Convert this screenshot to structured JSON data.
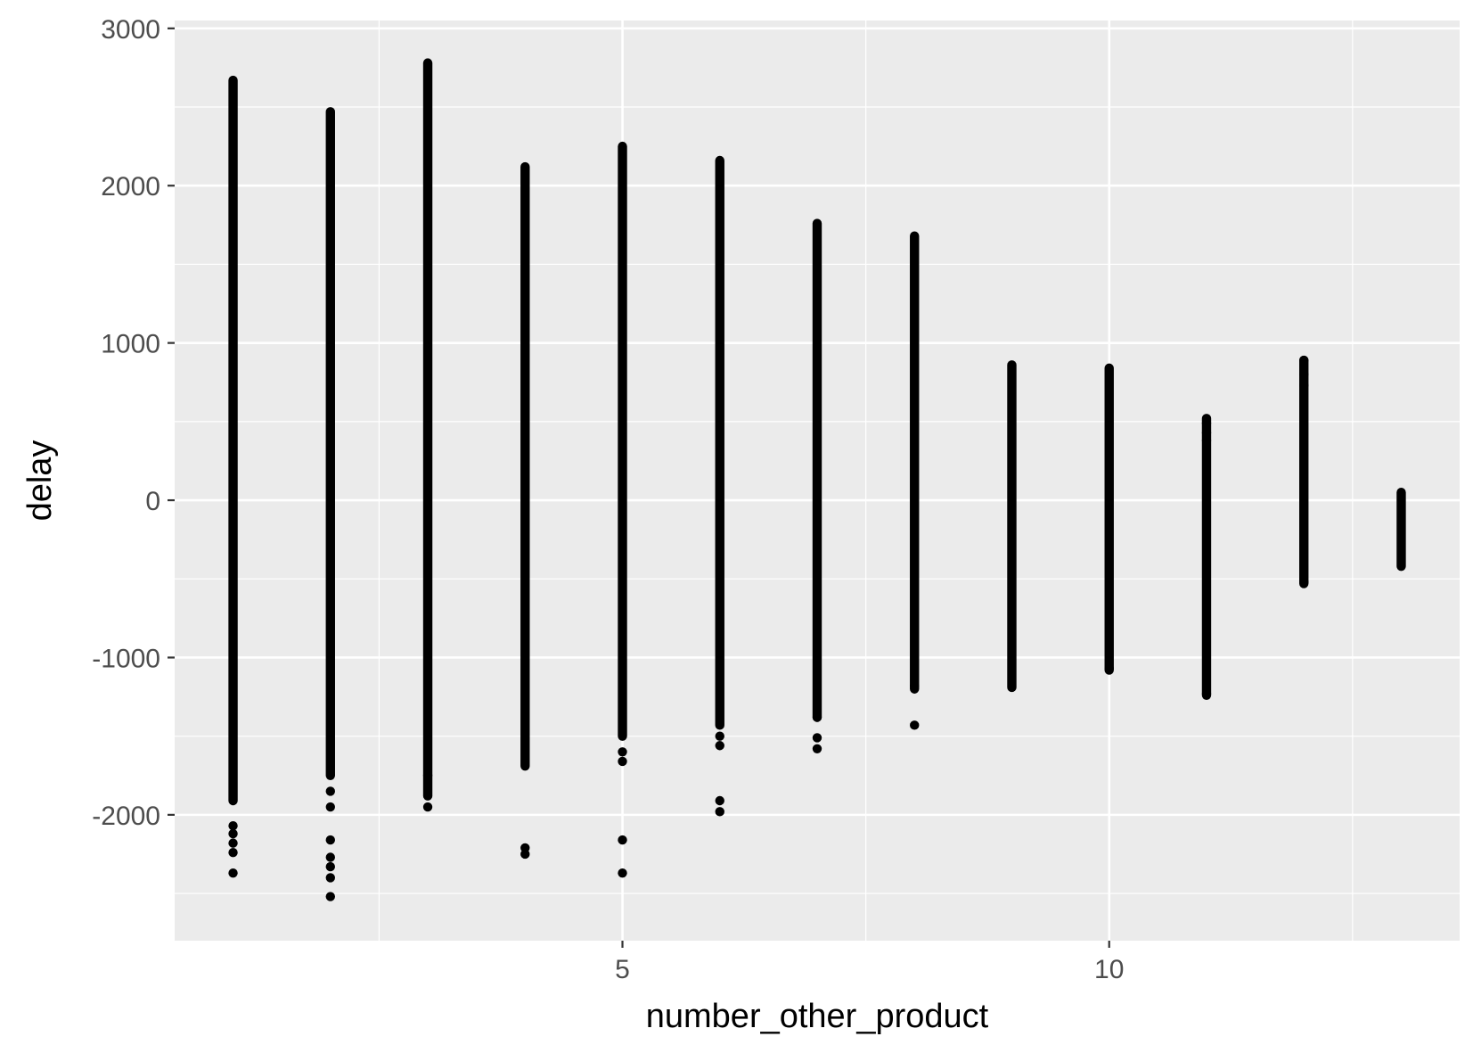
{
  "chart_data": {
    "type": "scatter",
    "xlabel": "number_other_product",
    "ylabel": "delay",
    "xlim": [
      0.4,
      13.6
    ],
    "ylim": [
      -2800,
      3050
    ],
    "x_ticks": [
      5,
      10
    ],
    "x_minor_ticks": [
      2.5,
      7.5,
      12.5
    ],
    "y_ticks": [
      3000,
      2000,
      1000,
      0,
      -1000,
      -2000
    ],
    "y_tick_labels": [
      "3000",
      "2000",
      "1000",
      "0",
      "-1000",
      "-2000"
    ],
    "y_minor_ticks": [
      2500,
      1500,
      500,
      -500,
      -1500,
      -2500
    ],
    "grid": true,
    "legend": "none",
    "colors": {
      "panel": "#ebebeb",
      "grid": "#ffffff",
      "point": "#000000"
    },
    "series": [
      {
        "x": [
          1,
          2,
          3,
          4,
          5,
          6,
          7,
          8,
          9,
          10,
          11,
          12,
          13
        ],
        "dense_min": [
          -1910,
          -1750,
          -1880,
          -1690,
          -1500,
          -1430,
          -1380,
          -1200,
          -1190,
          -1080,
          -1240,
          -530,
          -420
        ],
        "dense_max": [
          2670,
          2470,
          2780,
          2120,
          2250,
          2160,
          1760,
          1680,
          860,
          840,
          520,
          890,
          50
        ],
        "outliers": [
          [
            1,
            -2070
          ],
          [
            1,
            -2120
          ],
          [
            1,
            -2180
          ],
          [
            1,
            -2240
          ],
          [
            1,
            -2370
          ],
          [
            2,
            -1850
          ],
          [
            2,
            -1950
          ],
          [
            2,
            -2160
          ],
          [
            2,
            -2270
          ],
          [
            2,
            -2330
          ],
          [
            2,
            -2400
          ],
          [
            2,
            -2520
          ],
          [
            3,
            -1950
          ],
          [
            3,
            -1750
          ],
          [
            4,
            -2210
          ],
          [
            4,
            -2250
          ],
          [
            5,
            -1600
          ],
          [
            5,
            -1660
          ],
          [
            5,
            -2160
          ],
          [
            5,
            -2370
          ],
          [
            6,
            -1500
          ],
          [
            6,
            -1560
          ],
          [
            6,
            -1910
          ],
          [
            6,
            -1980
          ],
          [
            7,
            -1510
          ],
          [
            7,
            -1580
          ],
          [
            7,
            -1380
          ],
          [
            8,
            -1430
          ],
          [
            8,
            -1180
          ],
          [
            10,
            -1070
          ],
          [
            11,
            -1230
          ],
          [
            11,
            380
          ],
          [
            11,
            430
          ],
          [
            11,
            490
          ],
          [
            12,
            730
          ],
          [
            12,
            800
          ],
          [
            12,
            890
          ],
          [
            12,
            -520
          ]
        ]
      }
    ]
  }
}
